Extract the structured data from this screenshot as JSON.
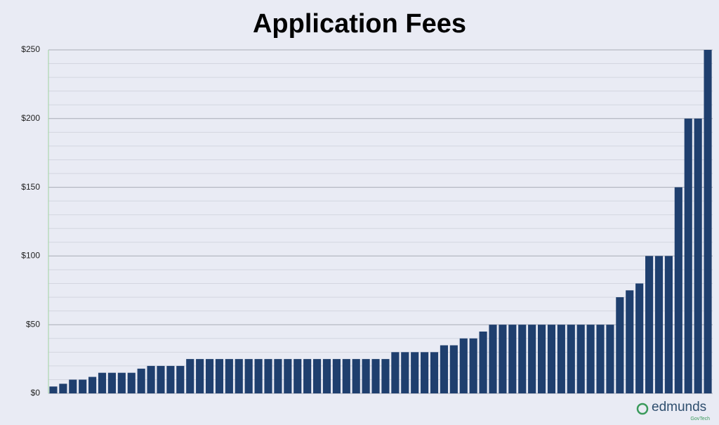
{
  "chart_data": {
    "type": "bar",
    "title": "Application Fees",
    "categories": [
      null,
      null,
      null,
      null,
      null,
      null,
      null,
      null,
      null,
      null,
      null,
      null,
      null,
      null,
      null,
      null,
      null,
      null,
      null,
      null,
      null,
      null,
      null,
      null,
      null,
      null,
      null,
      null,
      null,
      null,
      null,
      null,
      null,
      null,
      null,
      null,
      null,
      null,
      null,
      null,
      null,
      null,
      null,
      null,
      null,
      null,
      null,
      null,
      null,
      null,
      null,
      null,
      null,
      null,
      null,
      null,
      null,
      null,
      null,
      null,
      null,
      null,
      null,
      null,
      null,
      null,
      null,
      null
    ],
    "values": [
      5,
      7,
      10,
      10,
      12,
      15,
      15,
      15,
      15,
      18,
      20,
      20,
      20,
      20,
      25,
      25,
      25,
      25,
      25,
      25,
      25,
      25,
      25,
      25,
      25,
      25,
      25,
      25,
      25,
      25,
      25,
      25,
      25,
      25,
      25,
      30,
      30,
      30,
      30,
      30,
      35,
      35,
      40,
      40,
      45,
      50,
      50,
      50,
      50,
      50,
      50,
      50,
      50,
      50,
      50,
      50,
      50,
      50,
      70,
      75,
      80,
      100,
      100,
      100,
      150,
      200,
      200,
      250
    ],
    "color": "#1f3f6e",
    "ylim": [
      0,
      250
    ],
    "yticks": [
      {
        "value": 0,
        "label": "$0"
      },
      {
        "value": 50,
        "label": "$50"
      },
      {
        "value": 100,
        "label": "$100"
      },
      {
        "value": 150,
        "label": "$150"
      },
      {
        "value": 200,
        "label": "$200"
      },
      {
        "value": 250,
        "label": "$250"
      }
    ],
    "minor_yticks": [
      10,
      20,
      30,
      40,
      60,
      70,
      80,
      90,
      110,
      120,
      130,
      140,
      160,
      170,
      180,
      190,
      210,
      220,
      230,
      240
    ],
    "grid": true
  },
  "brand": {
    "name": "edmunds",
    "tagline": "GovTech"
  }
}
